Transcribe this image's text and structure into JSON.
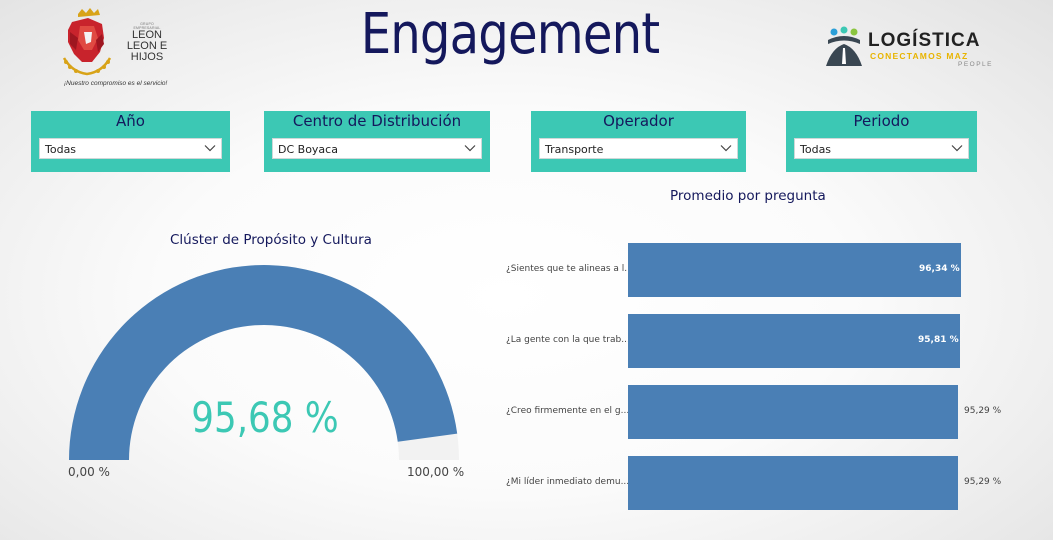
{
  "header": {
    "title": "Engagement",
    "left_logo": {
      "line_small1": "GRUPO",
      "line_small2": "EMPRESARIAL",
      "line1": "LEON",
      "line2": "LEON E",
      "line3": "HIJOS",
      "tagline": "¡Nuestro compromiso es el servicio!"
    },
    "right_logo": {
      "main": "LOGÍSTICA",
      "sub": "CONECTAMOS MAZ",
      "people": "PEOPLE"
    }
  },
  "filters": [
    {
      "label": "Año",
      "value": "Todas"
    },
    {
      "label": "Centro de Distribución",
      "value": "DC Boyaca"
    },
    {
      "label": "Operador",
      "value": "Transporte"
    },
    {
      "label": "Periodo",
      "value": "Todas"
    }
  ],
  "gauge": {
    "title": "Clúster de Propósito y Cultura",
    "value_label": "95,68 %",
    "value": 95.68,
    "min": 0,
    "max": 100,
    "min_label": "0,00 %",
    "max_label": "100,00 %",
    "fill_color": "#4a7fb5",
    "track_color": "#f2f2f2",
    "value_color": "#3cc8b4"
  },
  "chart_data": {
    "type": "bar",
    "orientation": "horizontal",
    "title": "Promedio por pregunta",
    "categories": [
      "¿Sientes que te alineas a l...",
      "¿La gente con la que trab...",
      "¿Creo firmemente en el g...",
      "¿Mi líder inmediato demu..."
    ],
    "values": [
      96.34,
      95.81,
      95.29,
      95.29
    ],
    "labels": [
      "96,34 %",
      "95,81 %",
      "95,29 %",
      "95,29 %"
    ],
    "xlim": [
      0,
      100
    ],
    "color": "#4a7fb5"
  },
  "colors": {
    "accent": "#3cc8b4",
    "title": "#14185c",
    "bar": "#4a7fb5"
  }
}
